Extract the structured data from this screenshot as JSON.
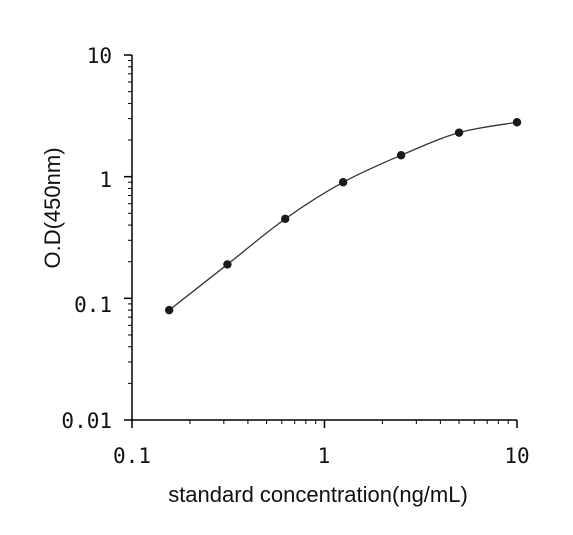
{
  "chart_data": {
    "type": "line",
    "title": "",
    "xlabel": "standard concentration(ng/mL)",
    "ylabel": "O.D(450nm)",
    "x_scale": "log",
    "y_scale": "log",
    "xlim": [
      0.1,
      10
    ],
    "ylim": [
      0.01,
      10
    ],
    "x_ticks": [
      "0.1",
      "1",
      "10"
    ],
    "y_ticks": [
      "0.01",
      "0.1",
      "1",
      "10"
    ],
    "grid": false,
    "legend": "none",
    "series": [
      {
        "x": [
          0.156,
          0.313,
          0.625,
          1.25,
          2.5,
          5,
          10
        ],
        "y": [
          0.08,
          0.19,
          0.45,
          0.9,
          1.5,
          2.3,
          2.8
        ]
      }
    ],
    "colors": {
      "line": "#333333",
      "marker": "#1a1a1a",
      "axis": "#000000"
    }
  }
}
